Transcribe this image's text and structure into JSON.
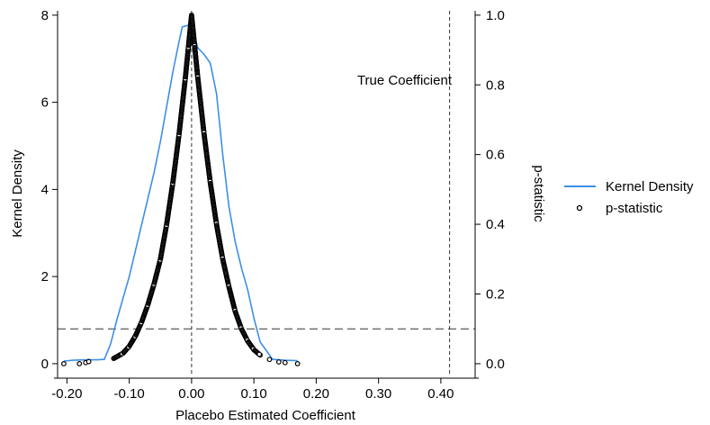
{
  "chart_data": {
    "type": "line",
    "title": "",
    "xlabel": "Placebo Estimated Coefficient",
    "ylabel_left": "Kernel Density",
    "ylabel_right": "p-statistic",
    "xlim": [
      -0.215,
      0.455
    ],
    "ylim_left": [
      -0.25,
      8.1
    ],
    "ylim_right": [
      -0.03125,
      1.0125
    ],
    "x_ticks": [
      -0.2,
      -0.1,
      0.0,
      0.1,
      0.2,
      0.3,
      0.4
    ],
    "x_tick_labels": [
      "-0.20",
      "-0.10",
      "0.00",
      "0.10",
      "0.20",
      "0.30",
      "0.40"
    ],
    "y_left_ticks": [
      0,
      2,
      4,
      6,
      8
    ],
    "y_left_tick_labels": [
      "0",
      "2",
      "4",
      "6",
      "8"
    ],
    "y_right_ticks": [
      0,
      0.2,
      0.4,
      0.6,
      0.8,
      1.0
    ],
    "y_right_tick_labels": [
      "0.0",
      "0.2",
      "0.4",
      "0.6",
      "0.8",
      "1.0"
    ],
    "grid": false,
    "legend_position": "right-outside",
    "colors": {
      "density": "#3d8fe6",
      "points": "#000000",
      "reference": "#333333"
    },
    "reference_lines": {
      "vertical_zero": 0.0,
      "true_coefficient_x": 0.414,
      "horizontal_p": 0.1
    },
    "annotation": "True Coefficient",
    "series": [
      {
        "name": "Kernel Density",
        "axis": "left",
        "x": [
          -0.205,
          -0.19,
          -0.17,
          -0.15,
          -0.14,
          -0.13,
          -0.12,
          -0.11,
          -0.1,
          -0.09,
          -0.08,
          -0.07,
          -0.06,
          -0.05,
          -0.04,
          -0.03,
          -0.02,
          -0.015,
          -0.01,
          -0.005,
          0.0,
          0.005,
          0.01,
          0.02,
          0.03,
          0.04,
          0.05,
          0.06,
          0.07,
          0.08,
          0.09,
          0.1,
          0.11,
          0.12,
          0.13,
          0.15,
          0.17
        ],
        "y": [
          0.06,
          0.08,
          0.09,
          0.09,
          0.1,
          0.45,
          1.0,
          1.5,
          2.0,
          2.6,
          3.2,
          3.8,
          4.4,
          5.1,
          5.9,
          6.7,
          7.4,
          7.73,
          7.75,
          7.77,
          8.0,
          7.5,
          7.25,
          7.1,
          6.9,
          6.2,
          4.8,
          3.6,
          2.8,
          2.2,
          1.7,
          1.05,
          0.5,
          0.3,
          0.1,
          0.08,
          0.07
        ]
      },
      {
        "name": "p-statistic",
        "axis": "right",
        "type": "scatter",
        "x": [
          -0.205,
          -0.18,
          -0.17,
          -0.165,
          -0.125,
          -0.11,
          -0.1,
          -0.09,
          -0.08,
          -0.07,
          -0.06,
          -0.05,
          -0.04,
          -0.03,
          -0.02,
          -0.01,
          -0.005,
          0.0,
          0.005,
          0.01,
          0.02,
          0.03,
          0.04,
          0.05,
          0.06,
          0.07,
          0.08,
          0.09,
          0.1,
          0.11,
          0.125,
          0.14,
          0.15,
          0.17
        ],
        "y": [
          0.0,
          0.0,
          0.003,
          0.006,
          0.015,
          0.03,
          0.05,
          0.08,
          0.12,
          0.17,
          0.23,
          0.3,
          0.4,
          0.52,
          0.66,
          0.82,
          0.91,
          1.0,
          0.91,
          0.82,
          0.66,
          0.52,
          0.4,
          0.3,
          0.22,
          0.15,
          0.1,
          0.065,
          0.04,
          0.025,
          0.012,
          0.005,
          0.003,
          0.0
        ]
      }
    ]
  }
}
